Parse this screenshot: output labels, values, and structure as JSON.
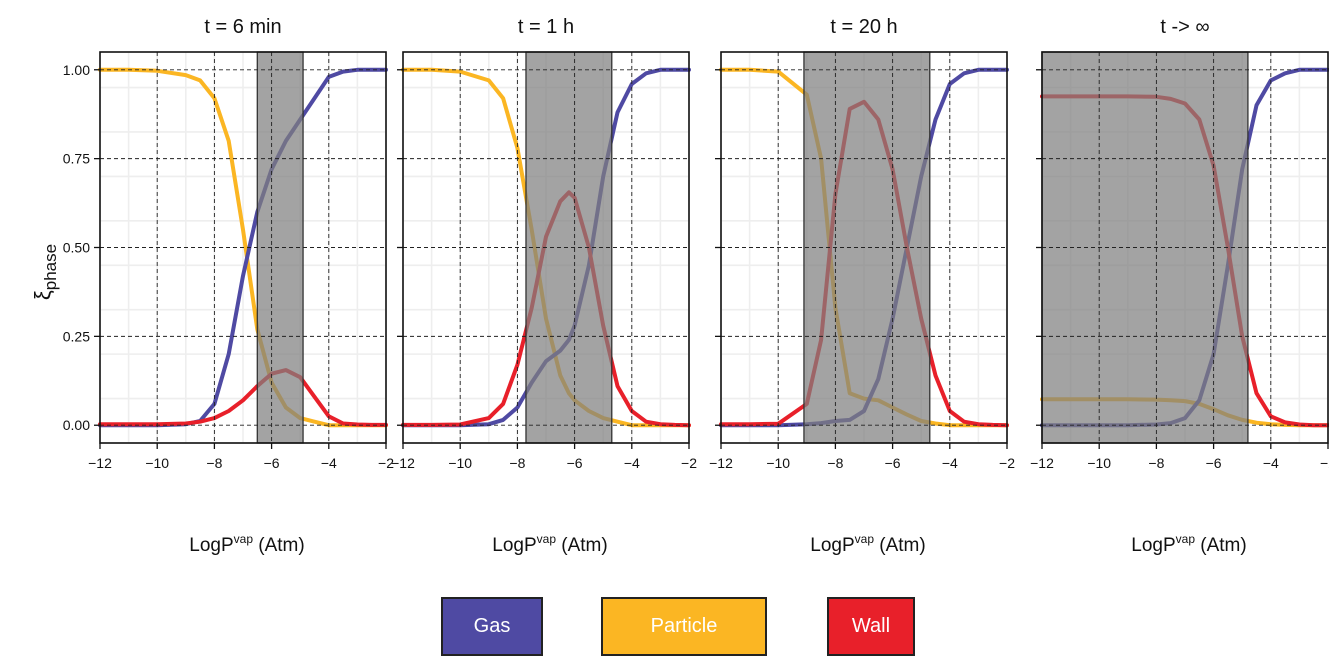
{
  "chart_data": {
    "type": "line",
    "ylabel": "ξ",
    "ylabel_sub": "phase",
    "xlabel_prefix": "LogP",
    "xlabel_sup": "vap",
    "xlabel_suffix": " (Atm)",
    "xlim": [
      -12,
      -2
    ],
    "ylim": [
      -0.05,
      1.05
    ],
    "xticks": [
      -12,
      -10,
      -8,
      -6,
      -4,
      -2
    ],
    "xtick_labels": [
      "−12",
      "−10",
      "−8",
      "−6",
      "−4",
      "−2"
    ],
    "yticks": [
      0.0,
      0.25,
      0.5,
      0.75,
      1.0
    ],
    "ytick_labels": [
      "0.00",
      "0.25",
      "0.50",
      "0.75",
      "1.00"
    ],
    "grid": true,
    "legend_position": "bottom-center",
    "colors": {
      "Gas": "#4f4aa3",
      "Particle": "#fbb623",
      "Wall": "#e8202a",
      "band": "#808080"
    },
    "legend": [
      {
        "label": "Gas",
        "color": "#4f4aa3"
      },
      {
        "label": "Particle",
        "color": "#fbb623"
      },
      {
        "label": "Wall",
        "color": "#e8202a"
      }
    ],
    "panels": [
      {
        "title": "t = 6 min",
        "shaded_range": [
          -6.5,
          -4.9
        ],
        "x": [
          -12,
          -11,
          -10,
          -9,
          -8.5,
          -8,
          -7.5,
          -7,
          -6.5,
          -6,
          -5.5,
          -5,
          -4.5,
          -4,
          -3.5,
          -3,
          -2.5,
          -2
        ],
        "series": [
          {
            "name": "Gas",
            "values": [
              0.0,
              0.0,
              0.0,
              0.003,
              0.012,
              0.06,
              0.2,
              0.42,
              0.6,
              0.72,
              0.8,
              0.86,
              0.92,
              0.98,
              0.995,
              1.0,
              1.0,
              1.0
            ]
          },
          {
            "name": "Particle",
            "values": [
              1.0,
              1.0,
              0.997,
              0.985,
              0.97,
              0.92,
              0.8,
              0.55,
              0.27,
              0.12,
              0.05,
              0.02,
              0.01,
              0.0,
              0.0,
              0.0,
              0.0,
              0.0
            ]
          },
          {
            "name": "Wall",
            "values": [
              0.003,
              0.003,
              0.003,
              0.005,
              0.01,
              0.02,
              0.04,
              0.07,
              0.11,
              0.145,
              0.155,
              0.135,
              0.08,
              0.025,
              0.005,
              0.002,
              0.001,
              0.001
            ]
          }
        ]
      },
      {
        "title": "t = 1 h",
        "shaded_range": [
          -7.7,
          -4.7
        ],
        "x": [
          -12,
          -11,
          -10,
          -9,
          -8.5,
          -8,
          -7.5,
          -7,
          -6.5,
          -6.2,
          -6,
          -5.5,
          -5,
          -4.5,
          -4,
          -3.5,
          -3,
          -2.5,
          -2
        ],
        "series": [
          {
            "name": "Gas",
            "values": [
              0.0,
              0.0,
              0.0,
              0.003,
              0.015,
              0.05,
              0.12,
              0.18,
              0.21,
              0.24,
              0.28,
              0.45,
              0.7,
              0.88,
              0.96,
              0.99,
              1.0,
              1.0,
              1.0
            ]
          },
          {
            "name": "Particle",
            "values": [
              1.0,
              1.0,
              0.995,
              0.97,
              0.92,
              0.78,
              0.55,
              0.3,
              0.14,
              0.09,
              0.07,
              0.04,
              0.02,
              0.01,
              0.0,
              0.0,
              0.0,
              0.0,
              0.0
            ]
          },
          {
            "name": "Wall",
            "values": [
              0.001,
              0.001,
              0.002,
              0.02,
              0.06,
              0.17,
              0.33,
              0.53,
              0.63,
              0.655,
              0.64,
              0.5,
              0.28,
              0.11,
              0.04,
              0.01,
              0.003,
              0.001,
              0.0
            ]
          }
        ]
      },
      {
        "title": "t = 20 h",
        "shaded_range": [
          -9.1,
          -4.7
        ],
        "x": [
          -12,
          -11,
          -10,
          -9,
          -8.5,
          -8,
          -7.5,
          -7,
          -6.5,
          -6,
          -5.5,
          -5,
          -4.5,
          -4,
          -3.5,
          -3,
          -2.5,
          -2
        ],
        "series": [
          {
            "name": "Gas",
            "values": [
              0.0,
              0.0,
              0.0,
              0.003,
              0.006,
              0.012,
              0.015,
              0.04,
              0.13,
              0.3,
              0.5,
              0.7,
              0.86,
              0.96,
              0.99,
              1.0,
              1.0,
              1.0
            ]
          },
          {
            "name": "Particle",
            "values": [
              1.0,
              1.0,
              0.995,
              0.93,
              0.75,
              0.33,
              0.09,
              0.075,
              0.07,
              0.05,
              0.03,
              0.012,
              0.005,
              0.0,
              0.0,
              0.0,
              0.0,
              0.0
            ]
          },
          {
            "name": "Wall",
            "values": [
              0.003,
              0.003,
              0.004,
              0.06,
              0.24,
              0.65,
              0.89,
              0.91,
              0.86,
              0.72,
              0.5,
              0.3,
              0.14,
              0.04,
              0.01,
              0.003,
              0.001,
              0.0
            ]
          }
        ]
      },
      {
        "title": "t -> ∞",
        "shaded_range": [
          -12,
          -4.8
        ],
        "x": [
          -12,
          -11,
          -10,
          -9,
          -8,
          -7.5,
          -7,
          -6.5,
          -6,
          -5.5,
          -5,
          -4.5,
          -4,
          -3.5,
          -3,
          -2.5,
          -2
        ],
        "series": [
          {
            "name": "Gas",
            "values": [
              0.0,
              0.0,
              0.0,
              0.0,
              0.002,
              0.006,
              0.02,
              0.07,
              0.2,
              0.45,
              0.72,
              0.9,
              0.97,
              0.99,
              1.0,
              1.0,
              1.0
            ]
          },
          {
            "name": "Particle",
            "values": [
              0.073,
              0.073,
              0.073,
              0.073,
              0.072,
              0.07,
              0.068,
              0.06,
              0.045,
              0.028,
              0.015,
              0.007,
              0.003,
              0.001,
              0.0,
              0.0,
              0.0
            ]
          },
          {
            "name": "Wall",
            "values": [
              0.925,
              0.925,
              0.925,
              0.925,
              0.924,
              0.918,
              0.905,
              0.86,
              0.73,
              0.5,
              0.25,
              0.09,
              0.025,
              0.008,
              0.002,
              0.0,
              0.0
            ]
          }
        ]
      }
    ]
  }
}
